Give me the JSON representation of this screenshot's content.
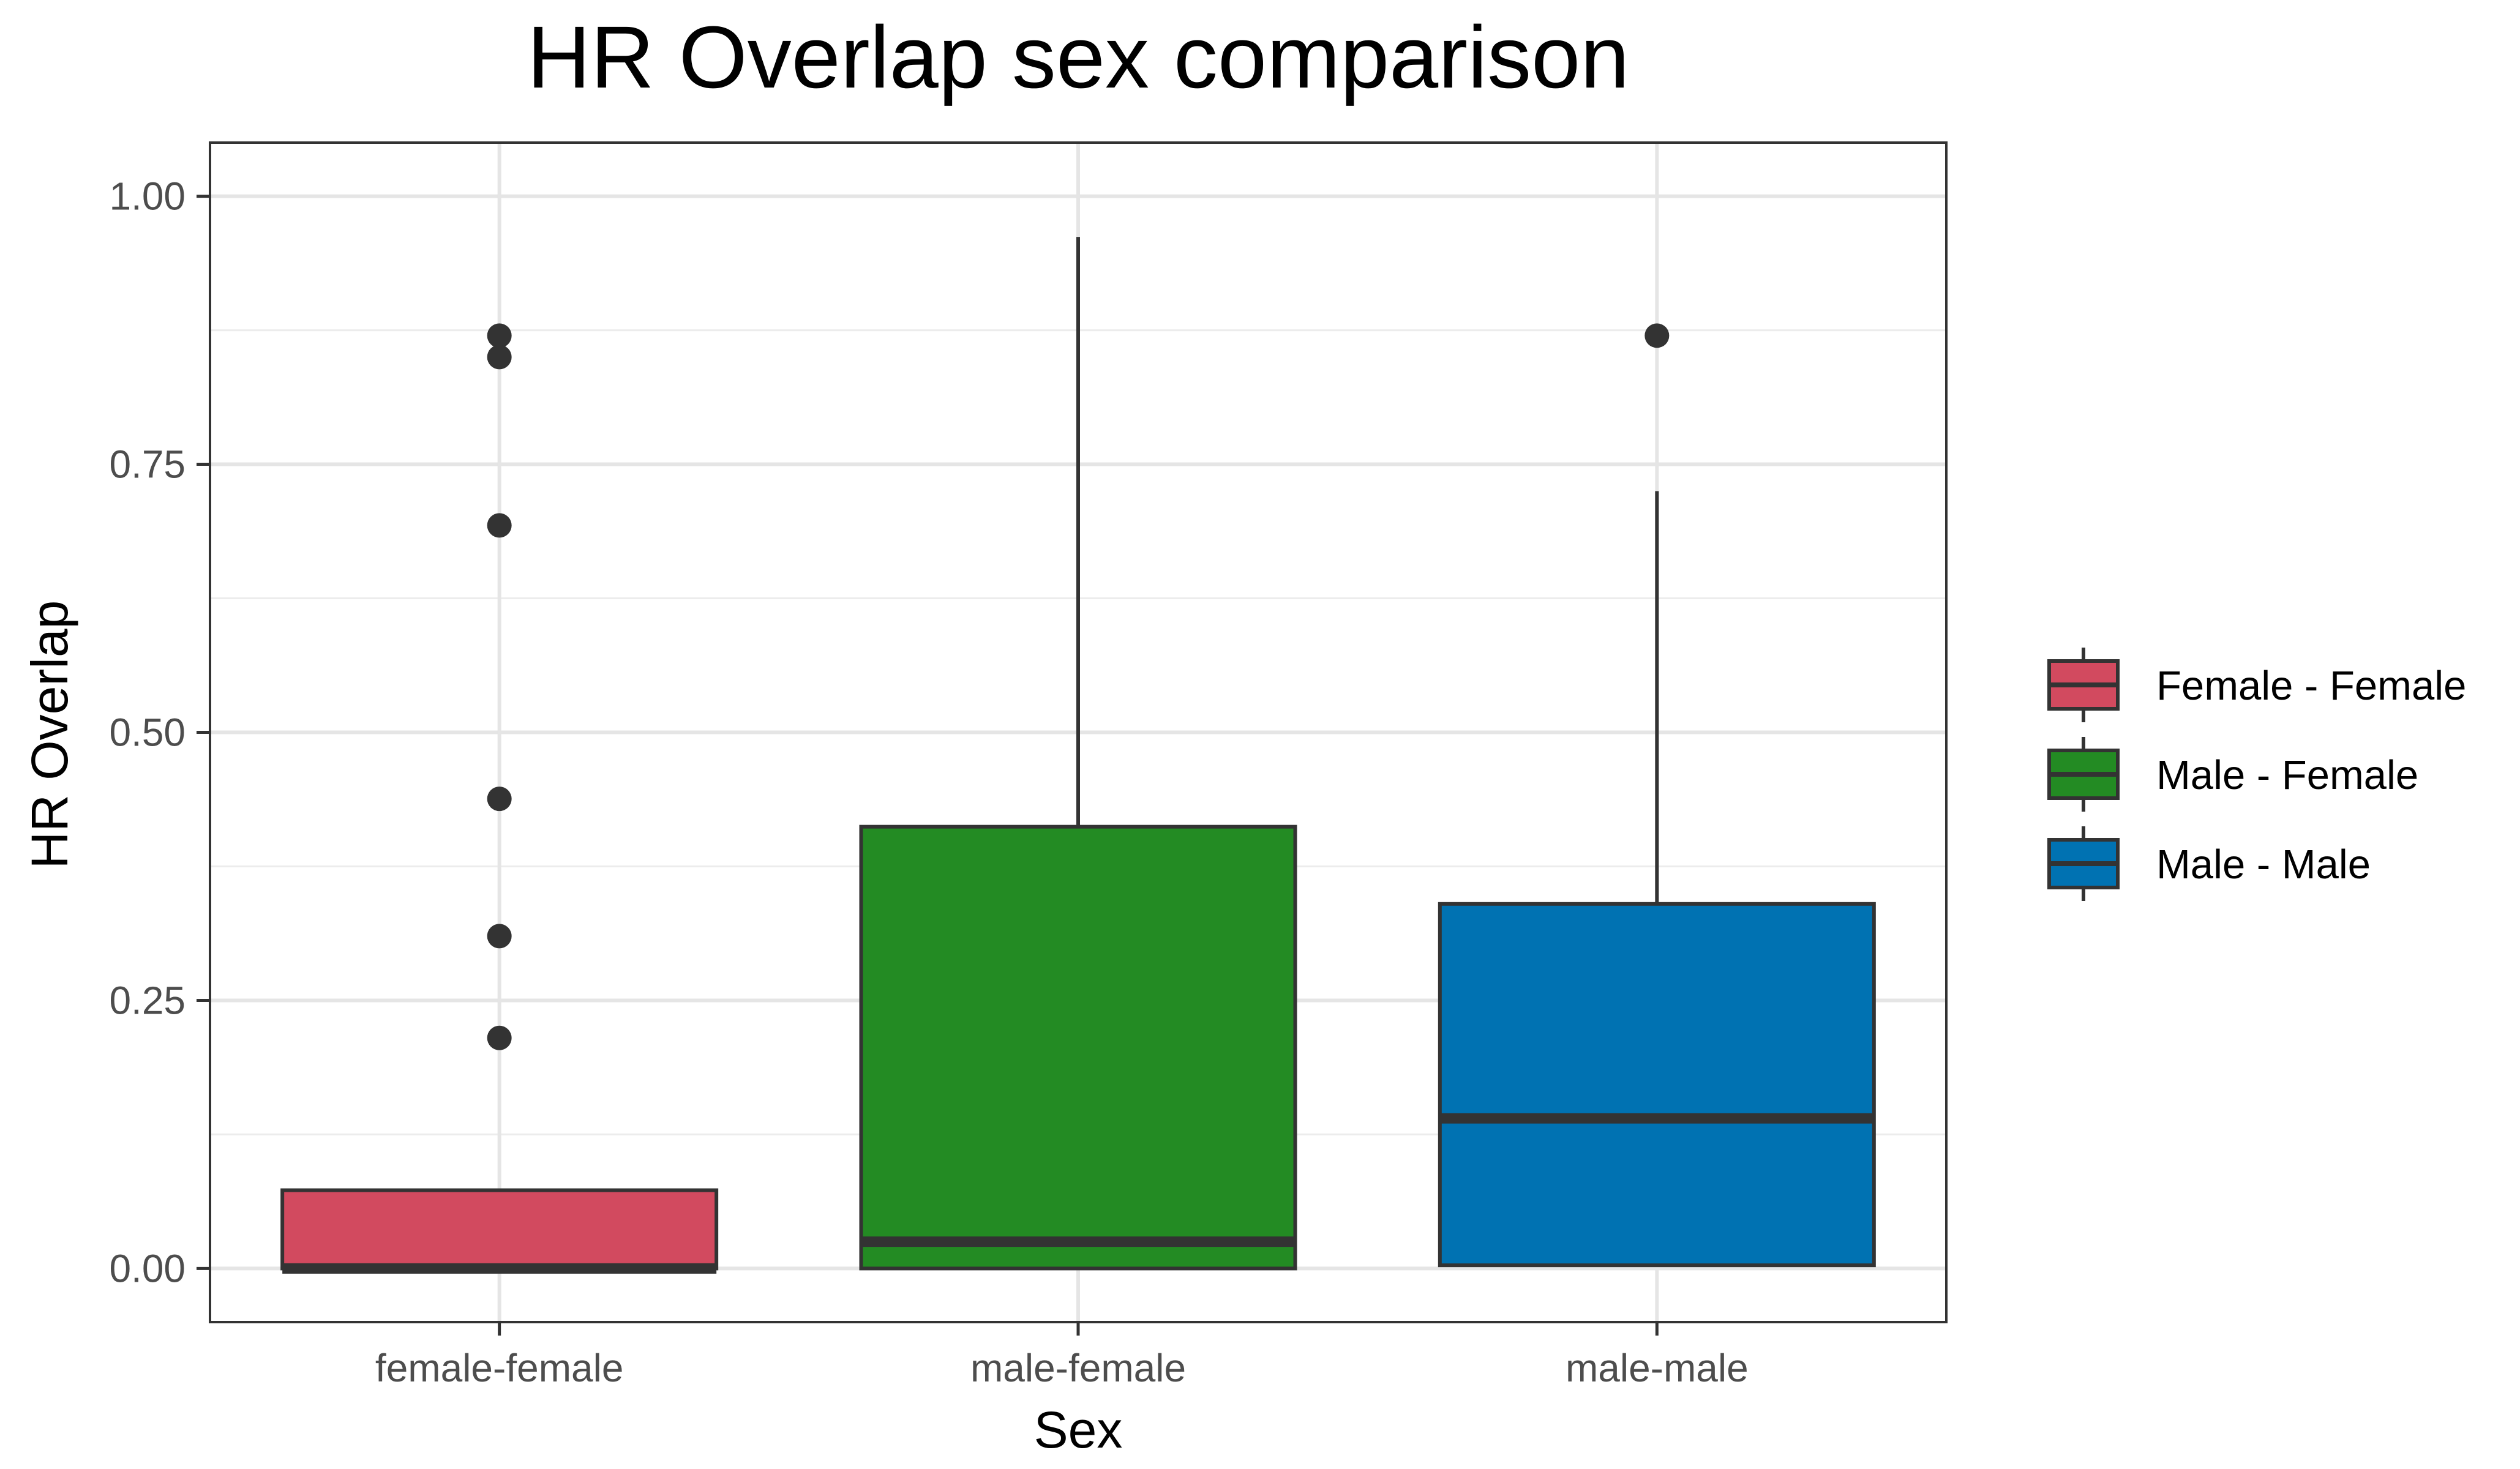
{
  "chart_data": {
    "type": "box",
    "title": "HR Overlap sex comparison",
    "xlabel": "Sex",
    "ylabel": "HR Overlap",
    "ylim": [
      -0.05,
      1.05
    ],
    "y_ticks": [
      0.0,
      0.25,
      0.5,
      0.75,
      1.0
    ],
    "y_tick_labels": [
      "0.00",
      "0.25",
      "0.50",
      "0.75",
      "1.00"
    ],
    "grid": true,
    "legend_position": "right",
    "categories": [
      "female-female",
      "male-female",
      "male-male"
    ],
    "series": [
      {
        "name": "Female - Female",
        "category": "female-female",
        "color": "#D24A5F",
        "whisker_low": 0.0,
        "q1": 0.0,
        "median": 0.0,
        "q3": 0.073,
        "whisker_high": 0.073,
        "outliers": [
          0.87,
          0.85,
          0.693,
          0.438,
          0.31,
          0.215
        ]
      },
      {
        "name": "Male - Female",
        "category": "male-female",
        "color": "#238B23",
        "whisker_low": 0.0,
        "q1": 0.0,
        "median": 0.025,
        "q3": 0.412,
        "whisker_high": 0.962,
        "outliers": []
      },
      {
        "name": "Male - Male",
        "category": "male-male",
        "color": "#0072B2",
        "whisker_low": 0.003,
        "q1": 0.003,
        "median": 0.14,
        "q3": 0.34,
        "whisker_high": 0.725,
        "outliers": [
          0.87
        ]
      }
    ]
  }
}
